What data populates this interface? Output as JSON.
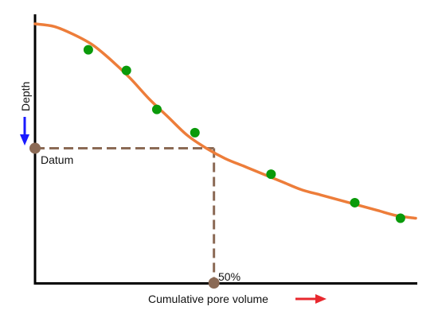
{
  "chart_data": {
    "type": "scatter",
    "xlabel": "Cumulative pore volume",
    "ylabel": "Depth",
    "points": [
      {
        "x": 0.14,
        "y": 0.1
      },
      {
        "x": 0.24,
        "y": 0.18
      },
      {
        "x": 0.32,
        "y": 0.33
      },
      {
        "x": 0.42,
        "y": 0.42
      },
      {
        "x": 0.62,
        "y": 0.58
      },
      {
        "x": 0.84,
        "y": 0.69
      },
      {
        "x": 0.96,
        "y": 0.75
      }
    ],
    "curve": [
      {
        "x": 0.0,
        "y": 0.0
      },
      {
        "x": 0.05,
        "y": 0.01
      },
      {
        "x": 0.1,
        "y": 0.04
      },
      {
        "x": 0.15,
        "y": 0.08
      },
      {
        "x": 0.2,
        "y": 0.14
      },
      {
        "x": 0.25,
        "y": 0.21
      },
      {
        "x": 0.3,
        "y": 0.29
      },
      {
        "x": 0.35,
        "y": 0.36
      },
      {
        "x": 0.4,
        "y": 0.43
      },
      {
        "x": 0.45,
        "y": 0.48
      },
      {
        "x": 0.5,
        "y": 0.52
      },
      {
        "x": 0.55,
        "y": 0.55
      },
      {
        "x": 0.6,
        "y": 0.58
      },
      {
        "x": 0.65,
        "y": 0.61
      },
      {
        "x": 0.7,
        "y": 0.64
      },
      {
        "x": 0.75,
        "y": 0.66
      },
      {
        "x": 0.8,
        "y": 0.68
      },
      {
        "x": 0.85,
        "y": 0.7
      },
      {
        "x": 0.9,
        "y": 0.72
      },
      {
        "x": 0.95,
        "y": 0.74
      },
      {
        "x": 1.0,
        "y": 0.75
      }
    ],
    "xlim": [
      0,
      1
    ],
    "ylim": [
      0,
      1
    ],
    "datum_depth": 0.48,
    "midpoint_x": 0.47,
    "annotations": {
      "datum_label": "Datum",
      "midpoint_label": "50%"
    },
    "grid": false,
    "colors": {
      "curve": "#ed7d3a",
      "points": "#0a9a0a",
      "markers": "#8b6a55",
      "dashed": "#8b6a55",
      "depth_arrow": "#1a1aff",
      "volume_arrow": "#e8282e",
      "axes": "#000000"
    }
  }
}
